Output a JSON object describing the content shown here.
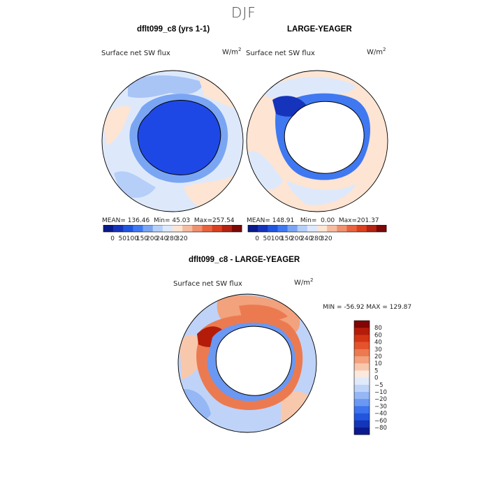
{
  "page_title": "DJF",
  "colors": {
    "continent": "#ffffff",
    "continent_model": "#1e48e6",
    "outline": "#000000",
    "abs_palette": [
      "#0a1a8a",
      "#1633bb",
      "#2055e0",
      "#3f78f0",
      "#7aa5f3",
      "#b5cff8",
      "#dde9fb",
      "#fde4d3",
      "#f6bba0",
      "#f0906e",
      "#e8633e",
      "#d9401e",
      "#b32212",
      "#7c0808"
    ],
    "diff_palette": [
      "#0b1a8e",
      "#1535b8",
      "#2255de",
      "#3d73ee",
      "#6a98f2",
      "#95b7f5",
      "#bfd3f8",
      "#e0eafb",
      "#fbe9de",
      "#f8c8ad",
      "#f2a27c",
      "#ec7a50",
      "#e5532c",
      "#d33514",
      "#b41c0a",
      "#820404"
    ]
  },
  "chart_data": [
    {
      "type": "heatmap",
      "projection": "south-polar-stereographic",
      "title": "dflt099_c8 (yrs 1-1)",
      "subtitle": "Surface net SW flux",
      "units_base": "W/m",
      "units_exp": "2",
      "stats": {
        "mean_label": "MEAN=",
        "mean": "136.46",
        "min_label": "Min=",
        "min": "45.03",
        "max_label": "Max=",
        "max": "257.54"
      },
      "colorbar": {
        "tick_labels": [
          "0",
          "50",
          "100",
          "150",
          "200",
          "240",
          "280",
          "320"
        ]
      }
    },
    {
      "type": "heatmap",
      "projection": "south-polar-stereographic",
      "title": "LARGE-YEAGER",
      "subtitle": "Surface net SW flux",
      "units_base": "W/m",
      "units_exp": "2",
      "stats": {
        "mean_label": "MEAN=",
        "mean": "148.91",
        "min_label": "Min=",
        "min": "0.00",
        "max_label": "Max=",
        "max": "201.37"
      },
      "colorbar": {
        "tick_labels": [
          "0",
          "50",
          "100",
          "150",
          "200",
          "240",
          "280",
          "320"
        ]
      }
    },
    {
      "type": "heatmap",
      "projection": "south-polar-stereographic",
      "title": "dflt099_c8 - LARGE-YEAGER",
      "subtitle": "Surface net SW flux",
      "units_base": "W/m",
      "units_exp": "2",
      "minmax": "MIN = -56.92  MAX = 129.87",
      "colorbar": {
        "tick_labels": [
          "80",
          "60",
          "40",
          "30",
          "20",
          "10",
          "5",
          "0",
          "−5",
          "−10",
          "−20",
          "−30",
          "−40",
          "−60",
          "−80"
        ]
      }
    }
  ]
}
